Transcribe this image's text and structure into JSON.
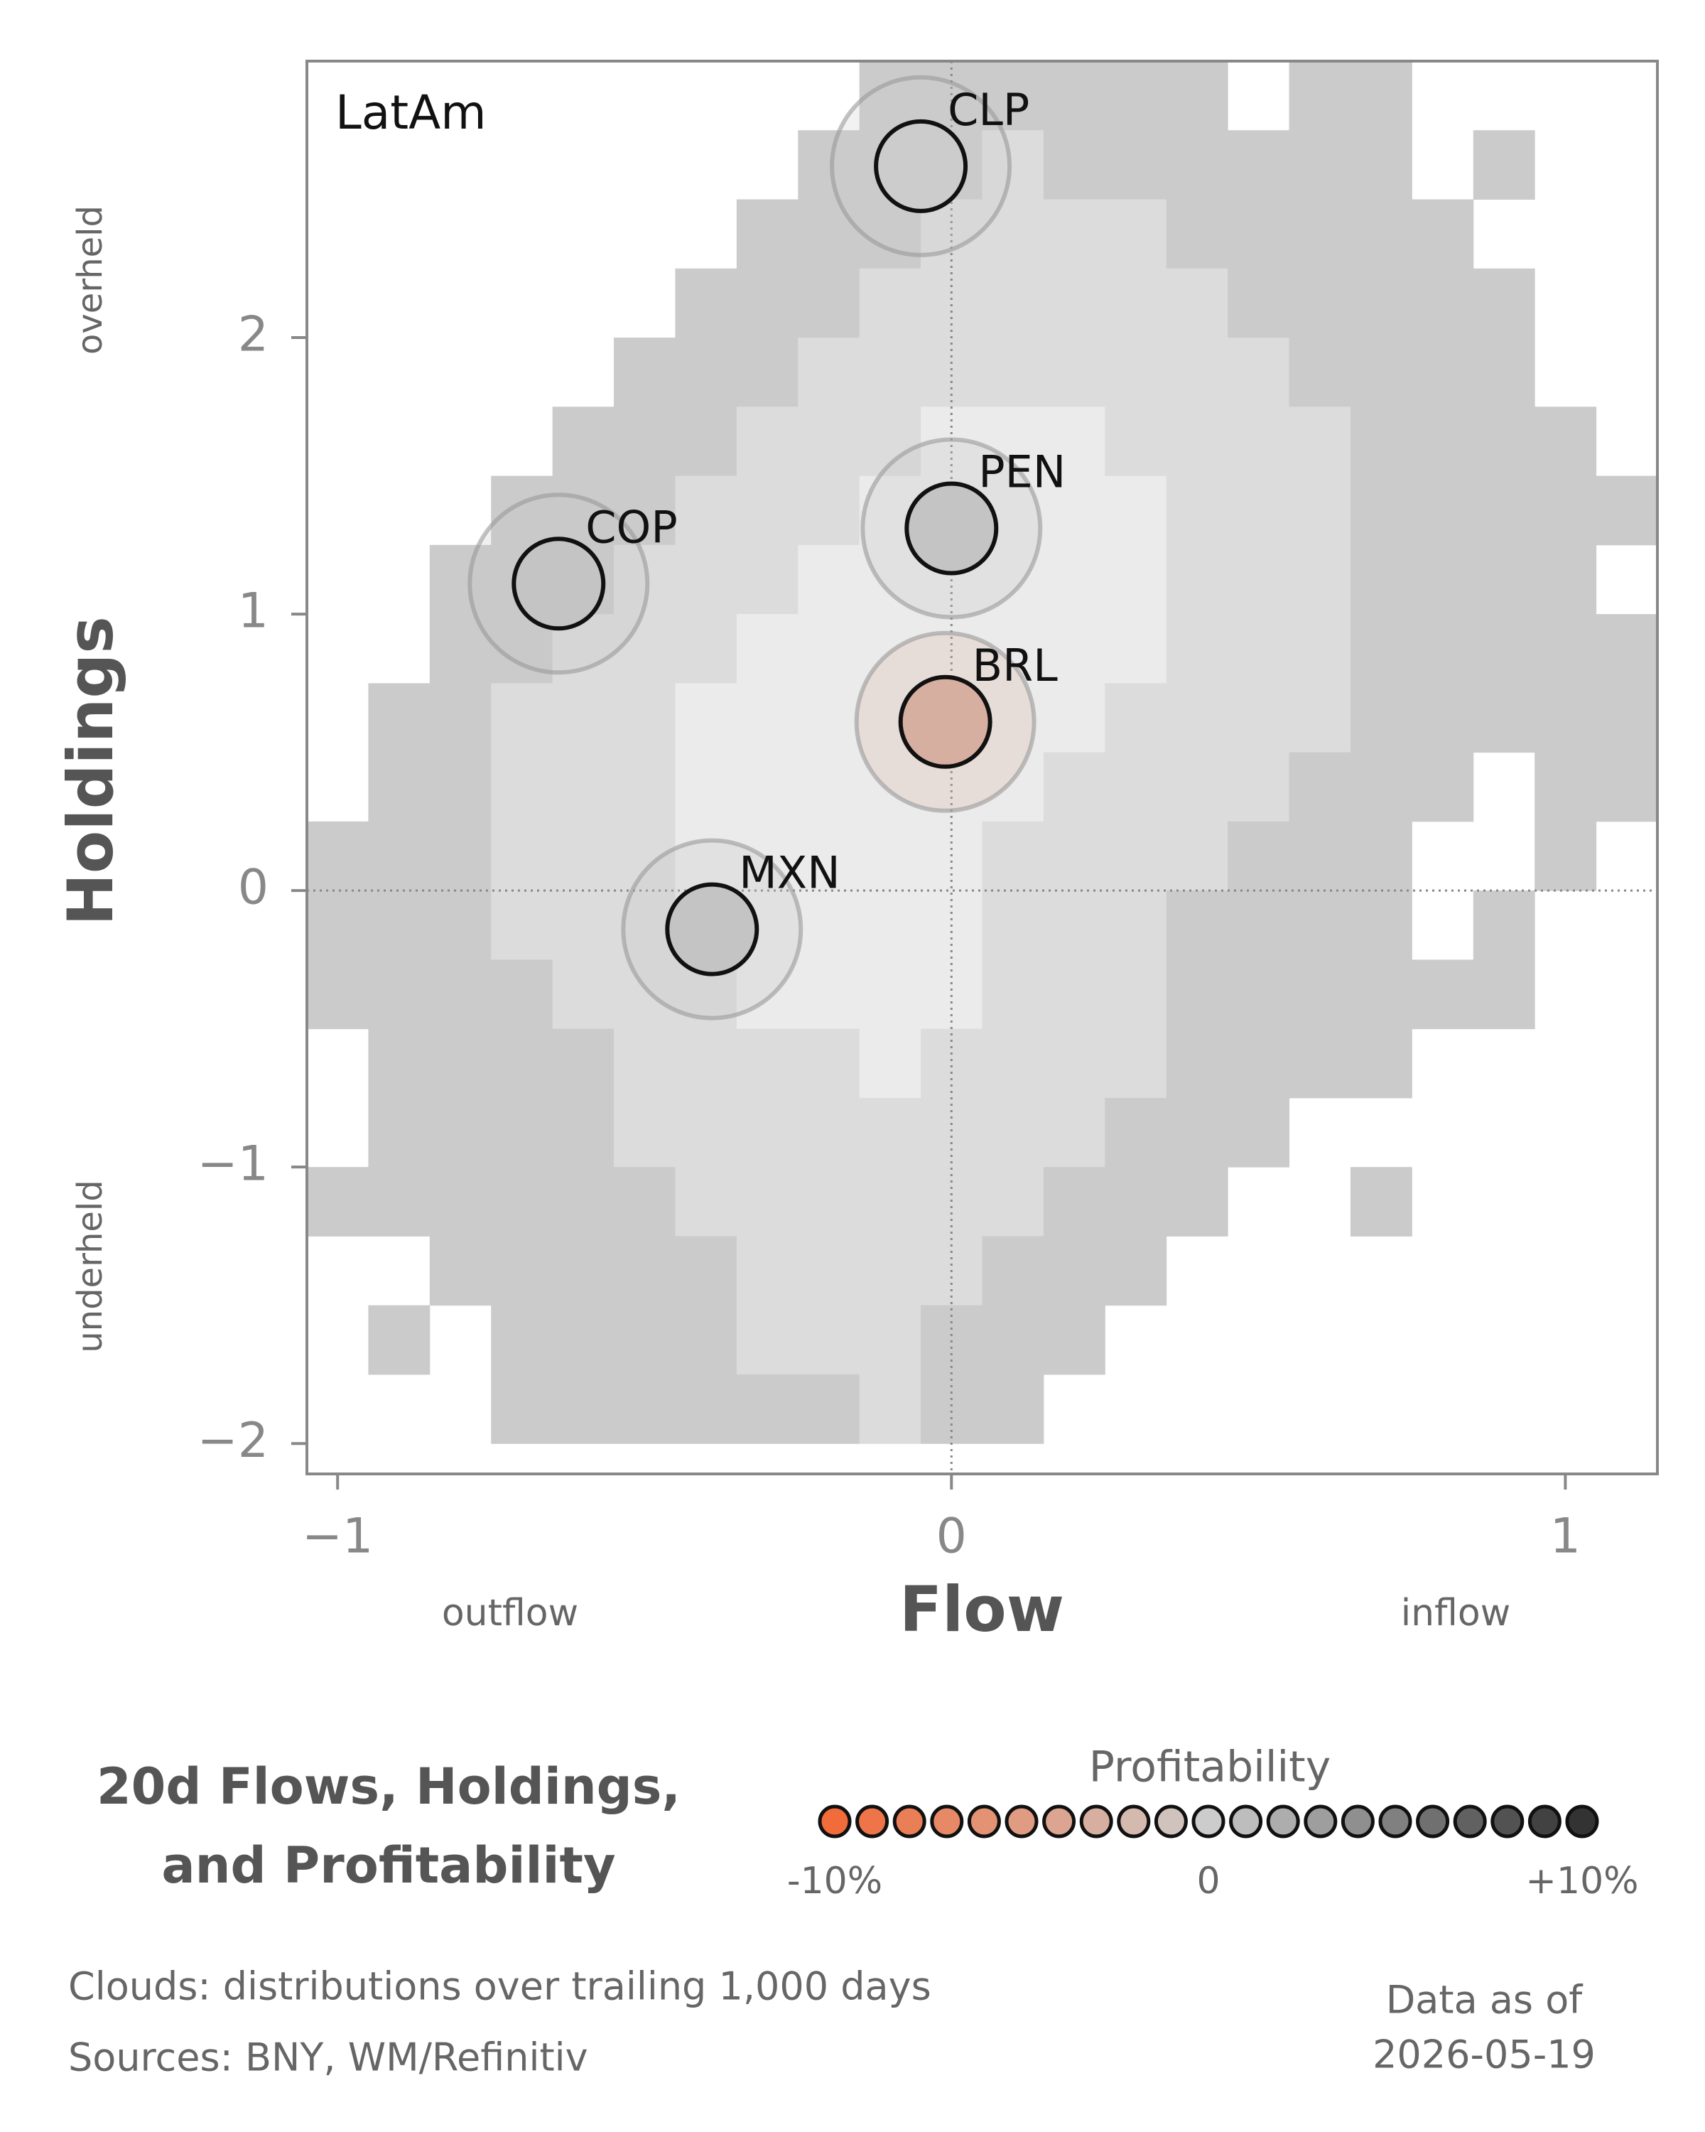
{
  "chart_data": {
    "type": "scatter",
    "panel_label": "LatAm",
    "xlabel": "Flow",
    "ylabel": "Holdings",
    "x_low_label": "outflow",
    "x_high_label": "inflow",
    "y_high_label": "overheld",
    "y_low_label": "underheld",
    "title_lines": [
      "20d Flows, Holdings,",
      "and Profitability"
    ],
    "xlim": [
      -1.05,
      1.15
    ],
    "ylim": [
      -2.11,
      3.0
    ],
    "xticks": [
      {
        "value": -1,
        "label": "−1"
      },
      0,
      1
    ],
    "yticks": [
      {
        "value": -2,
        "label": "−2"
      },
      {
        "value": -1,
        "label": "−1"
      },
      0,
      1,
      2
    ],
    "vlines": [
      0
    ],
    "hlines": [
      0
    ],
    "points": {
      "labels": [
        "CLP",
        "PEN",
        "COP",
        "BRL",
        "MXN"
      ],
      "x": [
        -0.05,
        0.0,
        -0.64,
        -0.01,
        -0.39
      ],
      "y": [
        2.62,
        1.31,
        1.11,
        0.61,
        -0.14
      ],
      "profitability": [
        0,
        0.5,
        0.5,
        -3,
        0.5
      ]
    },
    "cloud": {
      "x_range": [
        -1.05,
        1.15
      ],
      "y_range": [
        -2.0,
        3.0
      ],
      "level_colors": [
        "#cbcbcb",
        "#dcdcdc",
        "#ebebeb"
      ],
      "z": [
        [
          0,
          0,
          0,
          0,
          0,
          0,
          0,
          0,
          0,
          1,
          1,
          1,
          1,
          1,
          1,
          0,
          1,
          1,
          0,
          0,
          0,
          0
        ],
        [
          0,
          0,
          0,
          0,
          0,
          0,
          0,
          0,
          1,
          1,
          1,
          2,
          1,
          1,
          1,
          1,
          1,
          1,
          0,
          1,
          0,
          0
        ],
        [
          0,
          0,
          0,
          0,
          0,
          0,
          0,
          1,
          1,
          1,
          2,
          2,
          2,
          2,
          1,
          1,
          1,
          1,
          1,
          0,
          0,
          0
        ],
        [
          0,
          0,
          0,
          0,
          0,
          0,
          1,
          1,
          1,
          2,
          2,
          2,
          2,
          2,
          2,
          1,
          1,
          1,
          1,
          1,
          0,
          0
        ],
        [
          0,
          0,
          0,
          0,
          0,
          1,
          1,
          1,
          2,
          2,
          2,
          2,
          2,
          2,
          2,
          2,
          1,
          1,
          1,
          1,
          0,
          0
        ],
        [
          0,
          0,
          0,
          0,
          1,
          1,
          1,
          2,
          2,
          2,
          3,
          3,
          3,
          2,
          2,
          2,
          2,
          1,
          1,
          1,
          1,
          0
        ],
        [
          0,
          0,
          0,
          1,
          1,
          1,
          2,
          2,
          2,
          3,
          3,
          3,
          3,
          3,
          2,
          2,
          2,
          1,
          1,
          1,
          1,
          1
        ],
        [
          0,
          0,
          1,
          1,
          1,
          2,
          2,
          2,
          3,
          3,
          3,
          3,
          3,
          3,
          2,
          2,
          2,
          1,
          1,
          1,
          1,
          0
        ],
        [
          0,
          0,
          1,
          1,
          2,
          2,
          2,
          3,
          3,
          3,
          3,
          3,
          3,
          3,
          2,
          2,
          2,
          1,
          1,
          1,
          1,
          1
        ],
        [
          0,
          1,
          1,
          2,
          2,
          2,
          3,
          3,
          3,
          3,
          3,
          3,
          3,
          2,
          2,
          2,
          2,
          1,
          1,
          1,
          1,
          1
        ],
        [
          0,
          1,
          1,
          2,
          2,
          2,
          3,
          3,
          3,
          3,
          3,
          3,
          2,
          2,
          2,
          2,
          1,
          1,
          1,
          0,
          1,
          1
        ],
        [
          1,
          1,
          1,
          2,
          2,
          2,
          3,
          3,
          3,
          3,
          3,
          2,
          2,
          2,
          2,
          1,
          1,
          1,
          0,
          0,
          1,
          0
        ],
        [
          1,
          1,
          1,
          2,
          2,
          2,
          3,
          3,
          3,
          3,
          3,
          2,
          2,
          2,
          1,
          1,
          1,
          1,
          0,
          1,
          0,
          0
        ],
        [
          1,
          1,
          1,
          1,
          2,
          2,
          2,
          3,
          3,
          3,
          3,
          2,
          2,
          2,
          1,
          1,
          1,
          1,
          1,
          1,
          0,
          0
        ],
        [
          0,
          1,
          1,
          1,
          1,
          2,
          2,
          2,
          2,
          3,
          2,
          2,
          2,
          2,
          1,
          1,
          1,
          1,
          0,
          0,
          0,
          0
        ],
        [
          0,
          1,
          1,
          1,
          1,
          2,
          2,
          2,
          2,
          2,
          2,
          2,
          2,
          1,
          1,
          1,
          0,
          0,
          0,
          0,
          0,
          0
        ],
        [
          1,
          1,
          1,
          1,
          1,
          1,
          2,
          2,
          2,
          2,
          2,
          2,
          1,
          1,
          1,
          0,
          0,
          1,
          0,
          0,
          0,
          0
        ],
        [
          0,
          0,
          1,
          1,
          1,
          1,
          1,
          2,
          2,
          2,
          2,
          1,
          1,
          1,
          0,
          0,
          0,
          0,
          0,
          0,
          0,
          0
        ],
        [
          0,
          1,
          0,
          1,
          1,
          1,
          1,
          2,
          2,
          2,
          1,
          1,
          1,
          0,
          0,
          0,
          0,
          0,
          0,
          0,
          0,
          0
        ],
        [
          0,
          0,
          0,
          1,
          1,
          1,
          1,
          1,
          1,
          2,
          1,
          1,
          0,
          0,
          0,
          0,
          0,
          0,
          0,
          0,
          0,
          0
        ]
      ]
    },
    "legend": {
      "title": "Profitability",
      "values": [
        -10,
        -9,
        -8,
        -7,
        -6,
        -5,
        -4,
        -3,
        -2,
        -1,
        0,
        1,
        2,
        3,
        4,
        5,
        6,
        7,
        8,
        9,
        10
      ],
      "colors": {
        "low": "#f26b3a",
        "mid": "#cccccc",
        "high": "#333333"
      },
      "ticks": [
        {
          "value": -10,
          "label": "-10%"
        },
        0,
        {
          "value": 10,
          "label": "+10%"
        }
      ]
    },
    "notes": [
      "Clouds:  distributions over trailing 1,000 days",
      "Sources:  BNY, WM/Refinitiv"
    ],
    "date_lines": [
      "Data as of",
      "2026-05-19"
    ]
  }
}
